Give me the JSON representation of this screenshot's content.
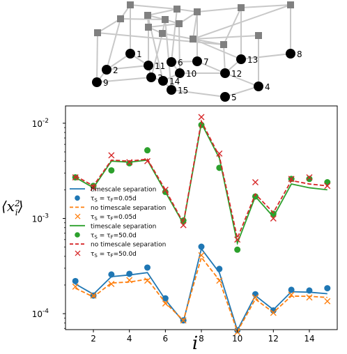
{
  "network": {
    "nodes": [
      {
        "id": "1",
        "label": "1"
      },
      {
        "id": "2",
        "label": "2"
      },
      {
        "id": "3",
        "label": "3"
      },
      {
        "id": "4",
        "label": "4"
      },
      {
        "id": "5",
        "label": "5"
      },
      {
        "id": "6",
        "label": "6"
      },
      {
        "id": "7",
        "label": "7"
      },
      {
        "id": "8",
        "label": "8"
      },
      {
        "id": "9",
        "label": "9"
      },
      {
        "id": "10",
        "label": "10"
      },
      {
        "id": "11",
        "label": "11"
      },
      {
        "id": "12",
        "label": "12"
      },
      {
        "id": "13",
        "label": "13"
      },
      {
        "id": "14",
        "label": "14"
      },
      {
        "id": "15",
        "label": "15"
      }
    ]
  },
  "chart_data": {
    "type": "line",
    "xlabel": "i",
    "ylabel": "⟨x_i²⟩",
    "y_scale": "log",
    "x": [
      1,
      2,
      3,
      4,
      5,
      6,
      7,
      8,
      9,
      10,
      11,
      12,
      13,
      14,
      15
    ],
    "xlim": [
      0.45,
      15.55
    ],
    "ylim": [
      6.8e-05,
      0.0152
    ],
    "xticks": [
      "2",
      "4",
      "6",
      "8",
      "10",
      "12",
      "14"
    ],
    "yticks": [
      "10",
      "10",
      "10"
    ],
    "ytick_exponents": [
      "-4",
      "-3",
      "-2"
    ],
    "grid": false,
    "legend_position": "left",
    "series": [
      {
        "name": "timescale separation",
        "color": "#1f77b4",
        "style": "solid-line",
        "values": [
          0.000205,
          0.00016,
          0.000245,
          0.000255,
          0.00027,
          0.00014,
          8.2e-05,
          0.00048,
          0.00027,
          6.7e-05,
          0.000155,
          0.00011,
          0.00017,
          0.000168,
          0.000162
        ]
      },
      {
        "name": "τ_S = τ_F=0.05d",
        "color": "#1f77b4",
        "style": "dot",
        "values": [
          0.00022,
          0.000155,
          0.000258,
          0.000262,
          0.000305,
          0.000145,
          8.5e-05,
          0.000505,
          0.000295,
          6.7e-05,
          0.00016,
          0.000108,
          0.000178,
          0.000175,
          0.000185
        ]
      },
      {
        "name": "no timescale separation",
        "color": "#ff7f0e",
        "style": "dashed-line",
        "values": [
          0.000185,
          0.00015,
          0.00021,
          0.000215,
          0.00023,
          0.00013,
          8.5e-05,
          0.00039,
          0.000225,
          6.5e-05,
          0.000142,
          0.000103,
          0.000153,
          0.000152,
          0.000148
        ]
      },
      {
        "name": "τ_S = τ_F=0.05d",
        "color": "#ff7f0e",
        "style": "x",
        "values": [
          0.000192,
          0.000155,
          0.000205,
          0.000225,
          0.000222,
          0.000128,
          8.5e-05,
          0.00041,
          0.000222,
          6.4e-05,
          0.000148,
          0.000102,
          0.000158,
          0.000148,
          0.000135
        ]
      },
      {
        "name": "timescale separation",
        "color": "#2ca02c",
        "style": "solid-line",
        "values": [
          0.0027,
          0.0021,
          0.004,
          0.0039,
          0.0041,
          0.0019,
          0.00088,
          0.01,
          0.0043,
          0.00055,
          0.0017,
          0.00104,
          0.0023,
          0.0021,
          0.002
        ]
      },
      {
        "name": "τ_S = τ_F=50.0d",
        "color": "#2ca02c",
        "style": "dot",
        "values": [
          0.0027,
          0.0022,
          0.0032,
          0.0038,
          0.0052,
          0.0019,
          0.00095,
          0.0096,
          0.0034,
          0.00047,
          0.0017,
          0.00112,
          0.0026,
          0.0026,
          0.0024
        ]
      },
      {
        "name": "no timescale separation",
        "color": "#d62728",
        "style": "dashed-line",
        "values": [
          0.0028,
          0.0022,
          0.0041,
          0.004,
          0.0042,
          0.002,
          0.0009,
          0.0105,
          0.0045,
          0.00062,
          0.0018,
          0.00115,
          0.0025,
          0.0023,
          0.0022
        ]
      },
      {
        "name": "τ_S = τ_F=50.0d",
        "color": "#d62728",
        "style": "x",
        "values": [
          0.0027,
          0.0021,
          0.0046,
          0.0039,
          0.004,
          0.002,
          0.00085,
          0.0116,
          0.0048,
          0.0006,
          0.0024,
          0.001,
          0.0026,
          0.0027,
          0.0022
        ]
      }
    ]
  }
}
